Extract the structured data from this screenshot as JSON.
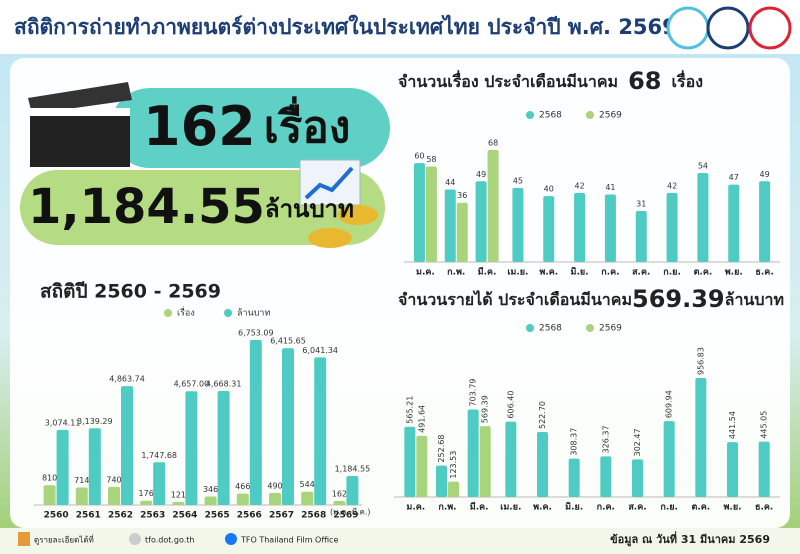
{
  "header": {
    "title": "สถิติการถ่ายทำภาพยนตร์ต่างประเทศในประเทศไทย ประจำปี พ.ศ. 2569"
  },
  "hero": {
    "count": "162",
    "count_unit": "เรื่อง",
    "revenue": "1,184.55",
    "revenue_unit": "ล้านบาท"
  },
  "chart_data": [
    {
      "type": "bar",
      "title": "สถิติปี 2560 - 2569",
      "annotation": "(ม.ค.-มี.ค.)",
      "categories": [
        "2560",
        "2561",
        "2562",
        "2563",
        "2564",
        "2565",
        "2566",
        "2567",
        "2568",
        "2569"
      ],
      "series": [
        {
          "name": "เรื่อง",
          "color": "#a9d47c",
          "values": [
            810,
            714,
            740,
            176,
            121,
            346,
            466,
            490,
            544,
            162
          ]
        },
        {
          "name": "ล้านบาท",
          "color": "#4ecbc2",
          "values": [
            3074.11,
            3139.29,
            4863.74,
            1747.68,
            4657.0,
            4668.31,
            6753.09,
            6415.65,
            6041.34,
            1184.55
          ],
          "value_labels": [
            "3,074.11",
            "3,139.29",
            "4,863.74",
            "1,747.68",
            "4,657.00",
            "4,668.31",
            "6,753.09",
            "6,415.65",
            "6,041.34",
            "1,184.55"
          ]
        }
      ]
    },
    {
      "type": "bar",
      "title": "จำนวนเรื่อง ประจำเดือนมีนาคม",
      "highlight": "68",
      "unit": "เรื่อง",
      "categories": [
        "ม.ค.",
        "ก.พ.",
        "มี.ค.",
        "เม.ย.",
        "พ.ค.",
        "มิ.ย.",
        "ก.ค.",
        "ส.ค.",
        "ก.ย.",
        "ต.ค.",
        "พ.ย.",
        "ธ.ค."
      ],
      "series": [
        {
          "name": "2568",
          "color": "#4ecbc2",
          "values": [
            60,
            44,
            49,
            45,
            40,
            42,
            41,
            31,
            42,
            54,
            47,
            49
          ]
        },
        {
          "name": "2569",
          "color": "#a9d47c",
          "values": [
            58,
            36,
            68,
            null,
            null,
            null,
            null,
            null,
            null,
            null,
            null,
            null
          ]
        }
      ]
    },
    {
      "type": "bar",
      "title": "จำนวนรายได้ ประจำเดือนมีนาคม",
      "highlight": "569.39",
      "unit": "ล้านบาท",
      "categories": [
        "ม.ค.",
        "ก.พ.",
        "มี.ค.",
        "เม.ย.",
        "พ.ค.",
        "มิ.ย.",
        "ก.ค.",
        "ส.ค.",
        "ก.ย.",
        "ต.ค.",
        "พ.ย.",
        "ธ.ค."
      ],
      "series": [
        {
          "name": "2568",
          "color": "#4ecbc2",
          "values": [
            565.21,
            252.68,
            703.79,
            606.4,
            522.7,
            308.37,
            326.37,
            302.47,
            609.94,
            956.83,
            441.54,
            445.05
          ],
          "value_labels": [
            "565.21",
            "252.68",
            "703.79",
            "606.40",
            "522.70",
            "308.37",
            "326.37",
            "302.47",
            "609.94",
            "956.83",
            "441.54",
            "445.05"
          ]
        },
        {
          "name": "2569",
          "color": "#a9d47c",
          "values": [
            491.64,
            123.53,
            569.39,
            null,
            null,
            null,
            null,
            null,
            null,
            null,
            null,
            null
          ],
          "value_labels": [
            "491.64",
            "123.53",
            "569.39",
            null,
            null,
            null,
            null,
            null,
            null,
            null,
            null,
            null
          ]
        }
      ]
    }
  ],
  "footer": {
    "more": "ดูรายละเอียดได้ที่",
    "site": "tfo.dot.go.th",
    "facebook": "TFO Thailand Film Office",
    "asof": "ข้อมูล ณ วันที่ 31 มีนาคม 2569"
  }
}
